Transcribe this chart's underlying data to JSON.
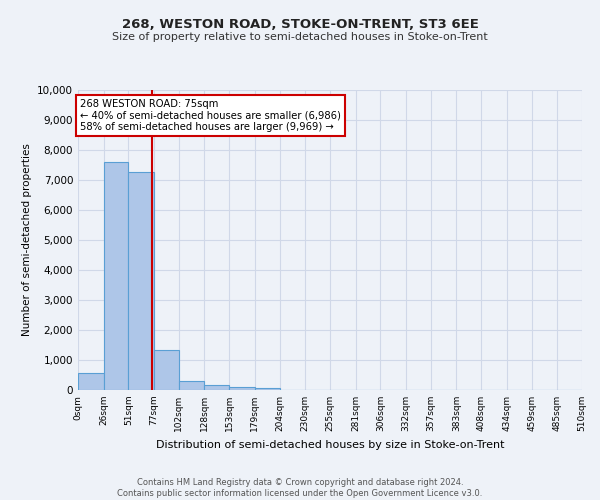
{
  "title": "268, WESTON ROAD, STOKE-ON-TRENT, ST3 6EE",
  "subtitle": "Size of property relative to semi-detached houses in Stoke-on-Trent",
  "xlabel": "Distribution of semi-detached houses by size in Stoke-on-Trent",
  "ylabel": "Number of semi-detached properties",
  "footnote": "Contains HM Land Registry data © Crown copyright and database right 2024.\nContains public sector information licensed under the Open Government Licence v3.0.",
  "bin_labels": [
    "0sqm",
    "26sqm",
    "51sqm",
    "77sqm",
    "102sqm",
    "128sqm",
    "153sqm",
    "179sqm",
    "204sqm",
    "230sqm",
    "255sqm",
    "281sqm",
    "306sqm",
    "332sqm",
    "357sqm",
    "383sqm",
    "408sqm",
    "434sqm",
    "459sqm",
    "485sqm",
    "510sqm"
  ],
  "bar_values": [
    570,
    7600,
    7250,
    1350,
    300,
    160,
    95,
    80,
    0,
    0,
    0,
    0,
    0,
    0,
    0,
    0,
    0,
    0,
    0,
    0
  ],
  "bar_color": "#aec6e8",
  "bar_edge_color": "#5a9fd4",
  "bin_edges": [
    0,
    26,
    51,
    77,
    102,
    128,
    153,
    179,
    204,
    230,
    255,
    281,
    306,
    332,
    357,
    383,
    408,
    434,
    459,
    485,
    510
  ],
  "property_line_x": 75,
  "property_line_label": "268 WESTON ROAD: 75sqm",
  "annotation_smaller": "← 40% of semi-detached houses are smaller (6,986)",
  "annotation_larger": "58% of semi-detached houses are larger (9,969) →",
  "annotation_box_color": "#ffffff",
  "annotation_box_edge": "#cc0000",
  "vline_color": "#cc0000",
  "ylim": [
    0,
    10000
  ],
  "yticks": [
    0,
    1000,
    2000,
    3000,
    4000,
    5000,
    6000,
    7000,
    8000,
    9000,
    10000
  ],
  "grid_color": "#d0d8e8",
  "bg_color": "#eef2f8"
}
